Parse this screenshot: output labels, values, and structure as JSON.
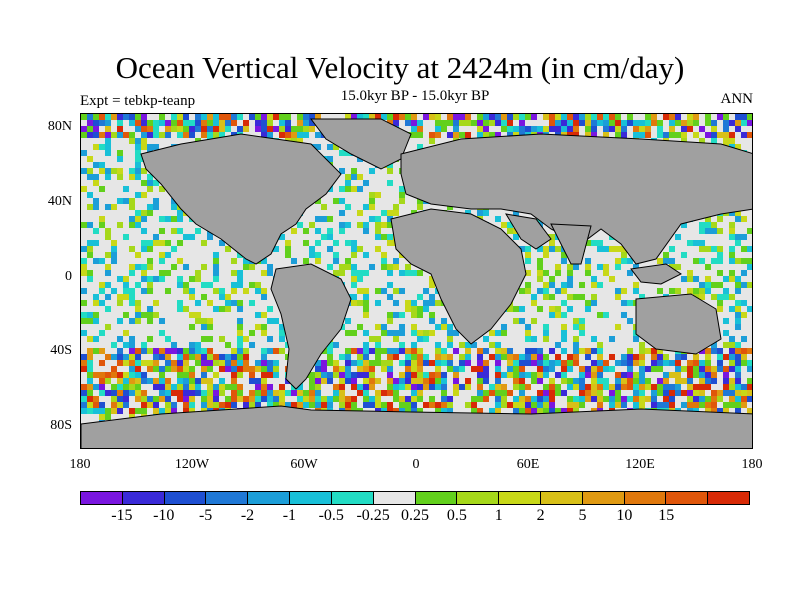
{
  "title": "Ocean Vertical Velocity at 2424m (in cm/day)",
  "subtitle": "15.0kyr BP - 15.0kyr BP",
  "left_subtitle": "Expt = tebkp-teanp",
  "right_subtitle": "ANN",
  "map": {
    "land_color": "#a0a0a0",
    "ocean_neutral_color": "#e6e6e6",
    "lat_labels": [
      "80N",
      "40N",
      "0",
      "40S",
      "80S"
    ],
    "lon_labels": [
      "180",
      "120W",
      "60W",
      "0",
      "60E",
      "120E",
      "180"
    ]
  },
  "colorbar": {
    "colors": [
      "#7a16e0",
      "#3a2ad8",
      "#1e4fd2",
      "#1f78d6",
      "#1c9ed8",
      "#18c0d8",
      "#22dcc4",
      "#e6e6e6",
      "#62d01c",
      "#a6d81a",
      "#c8d818",
      "#d8c018",
      "#e09a12",
      "#e0780c",
      "#e0560a",
      "#d82a06"
    ],
    "labels": [
      "-15",
      "-10",
      "-5",
      "-2",
      "-1",
      "-0.5",
      "-0.25",
      "0.25",
      "0.5",
      "1",
      "2",
      "5",
      "10",
      "15"
    ]
  }
}
